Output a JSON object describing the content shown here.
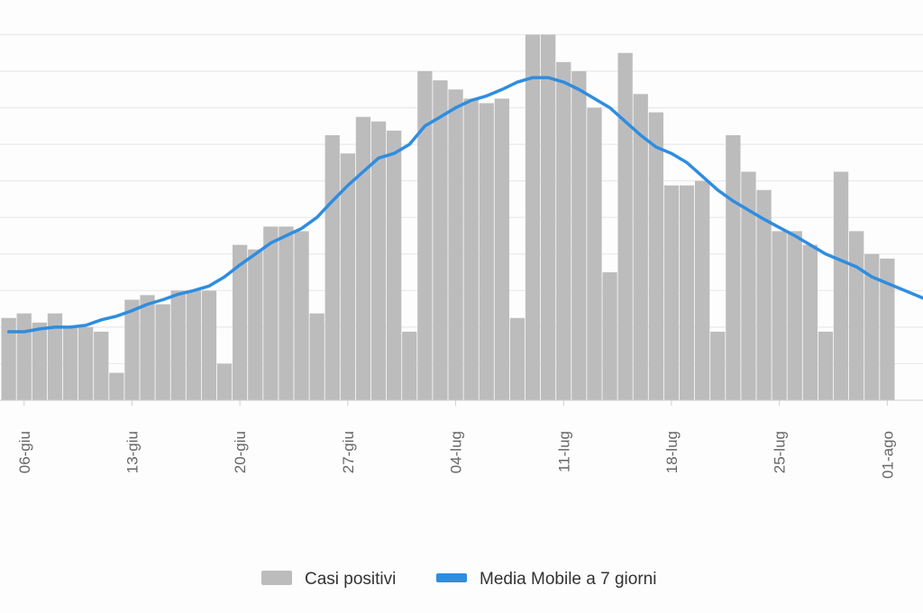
{
  "colors": {
    "bar": "#bdbcbd",
    "line": "#2f8ddf",
    "grid": "#e9e9ee",
    "background": "#fdfdfd"
  },
  "legend": {
    "bars_label": "Casi positivi",
    "line_label": "Media Mobile a 7 giorni"
  },
  "chart_data": {
    "type": "bar",
    "title": "",
    "xlabel": "",
    "ylabel": "",
    "ylim": [
      0,
      43
    ],
    "grid": true,
    "legend_position": "bottom",
    "x_tick_labels": [
      {
        "label": "06-giu",
        "day_index": 1
      },
      {
        "label": "13-giu",
        "day_index": 8
      },
      {
        "label": "20-giu",
        "day_index": 15
      },
      {
        "label": "27-giu",
        "day_index": 22
      },
      {
        "label": "04-lug",
        "day_index": 29
      },
      {
        "label": "11-lug",
        "day_index": 36
      },
      {
        "label": "18-lug",
        "day_index": 43
      },
      {
        "label": "25-lug",
        "day_index": 50
      },
      {
        "label": "01-ago",
        "day_index": 57
      }
    ],
    "series": [
      {
        "name": "Casi positivi",
        "kind": "bar",
        "values": [
          9,
          9.5,
          8.5,
          9.5,
          8,
          8,
          7.5,
          3,
          11,
          11.5,
          10.5,
          12,
          12,
          12,
          4,
          17,
          16.5,
          19,
          19,
          18.5,
          9.5,
          29,
          27,
          31,
          30.5,
          29.5,
          7.5,
          36,
          35,
          34,
          33,
          32.5,
          33,
          9,
          40,
          40,
          37,
          36,
          32,
          14,
          38,
          33.5,
          31.5,
          23.5,
          23.5,
          24,
          7.5,
          29,
          25,
          23,
          18.5,
          18.5,
          17,
          7.5,
          25,
          18.5,
          16,
          15.5
        ]
      },
      {
        "name": "Media Mobile a 7 giorni",
        "kind": "line",
        "values": [
          7.5,
          7.5,
          7.8,
          8.0,
          8.0,
          8.2,
          8.8,
          9.2,
          9.8,
          10.5,
          11.0,
          11.6,
          12.0,
          12.5,
          13.5,
          14.8,
          16.0,
          17.2,
          18.0,
          18.8,
          20.0,
          21.8,
          23.5,
          25.0,
          26.5,
          27.0,
          28.0,
          30.0,
          31.0,
          32.0,
          32.8,
          33.3,
          34.0,
          34.8,
          35.3,
          35.3,
          34.8,
          34.0,
          33.0,
          32.0,
          30.5,
          29.0,
          27.7,
          27.0,
          26.0,
          24.5,
          23.0,
          21.8,
          20.8,
          19.8,
          18.9,
          18.0,
          17.0,
          16.0,
          15.3,
          14.6,
          13.5,
          12.8
        ]
      }
    ]
  }
}
